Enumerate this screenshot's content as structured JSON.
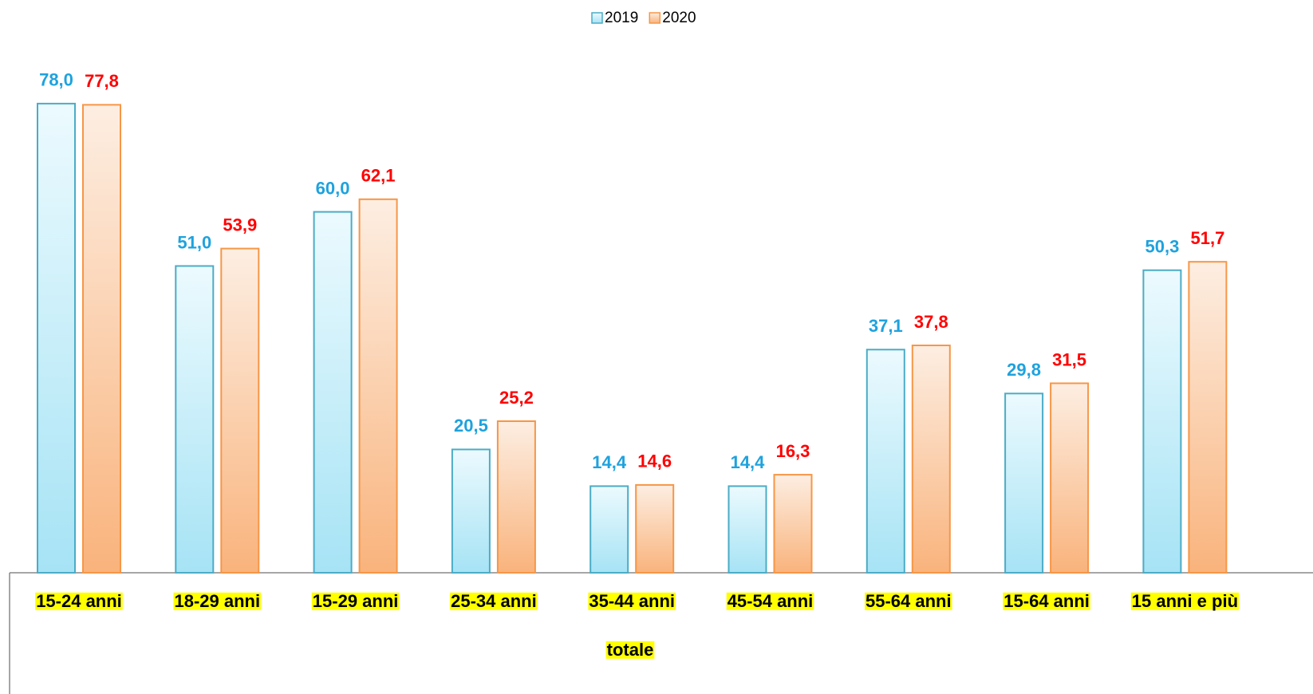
{
  "chart_data": {
    "type": "bar",
    "categories": [
      "15-24 anni",
      "18-29 anni",
      "15-29 anni",
      "25-34 anni",
      "35-44 anni",
      "45-54 anni",
      "55-64 anni",
      "15-64 anni",
      "15 anni e più"
    ],
    "x_label": "totale",
    "legend": "top",
    "series": [
      {
        "name": "2019",
        "color": "#4bacc6",
        "label_color": "#1ea2de",
        "values": [
          78.0,
          51.0,
          60.0,
          20.5,
          14.4,
          14.4,
          37.1,
          29.8,
          50.3
        ],
        "value_labels": [
          "78,0",
          "51,0",
          "60,0",
          "20,5",
          "14,4",
          "14,4",
          "37,1",
          "29,8",
          "50,3"
        ]
      },
      {
        "name": "2020",
        "color": "#f79646",
        "label_color": "#ff0000",
        "values": [
          77.8,
          53.9,
          62.1,
          25.2,
          14.6,
          16.3,
          37.8,
          31.5,
          51.7
        ],
        "value_labels": [
          "77,8",
          "53,9",
          "62,1",
          "25,2",
          "14,6",
          "16,3",
          "37,8",
          "31,5",
          "51,7"
        ]
      }
    ]
  }
}
